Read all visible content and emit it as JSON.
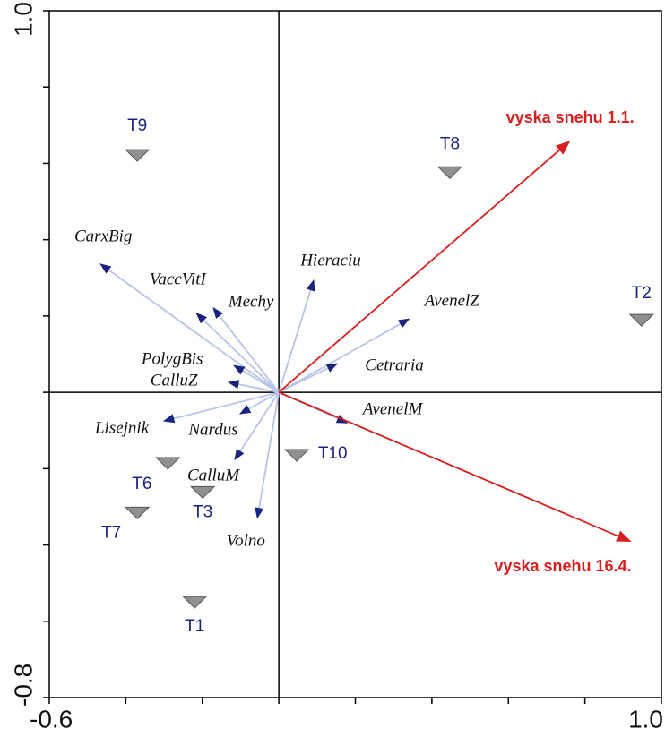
{
  "chart_data": {
    "type": "biplot",
    "xlim": [
      -0.6,
      1.0
    ],
    "ylim": [
      -0.8,
      1.0
    ],
    "xticks": [
      -0.6,
      {
        "value": 1.0,
        "label": "1.0"
      }
    ],
    "yticks": [
      -0.8,
      {
        "value": 1.0,
        "label": "1.0"
      }
    ],
    "xminor": [
      -0.4,
      -0.2,
      0,
      0.2,
      0.4,
      0.6,
      0.8
    ],
    "yminor": [
      -0.6,
      -0.4,
      -0.2,
      0,
      0.2,
      0.4,
      0.6,
      0.8
    ],
    "species": {
      "color": "#1a237e",
      "line_color": "#b8c4e6",
      "names": [
        "CarxBig",
        "VaccVitI",
        "Mechy",
        "Hieraciu",
        "AvenelZ",
        "Cetraria",
        "PolygBis",
        "CalluZ",
        "Lisejnik",
        "Nardus",
        "CalluM",
        "Volno",
        "AvenelM"
      ],
      "x": [
        -0.466,
        -0.215,
        -0.171,
        0.091,
        0.34,
        0.152,
        -0.117,
        -0.131,
        -0.3,
        -0.101,
        -0.115,
        -0.056,
        0.178
      ],
      "y": [
        0.336,
        0.207,
        0.221,
        0.293,
        0.192,
        0.075,
        0.07,
        0.026,
        -0.075,
        -0.056,
        -0.176,
        -0.329,
        -0.08
      ]
    },
    "environment": {
      "color": "#d81e1e",
      "names": [
        "vyska snehu 1.1.",
        "vyska snehu 16.4."
      ],
      "x": [
        0.759,
        0.918
      ],
      "y": [
        0.657,
        -0.39
      ]
    },
    "samples": {
      "color": "#909090",
      "names": [
        "T9",
        "T8",
        "T2",
        "T10",
        "T6",
        "T3",
        "T7",
        "T1"
      ],
      "x": [
        -0.37,
        0.447,
        0.948,
        0.047,
        -0.29,
        -0.199,
        -0.37,
        -0.22
      ],
      "y": [
        0.622,
        0.577,
        0.19,
        -0.164,
        -0.185,
        -0.261,
        -0.315,
        -0.549
      ]
    }
  }
}
